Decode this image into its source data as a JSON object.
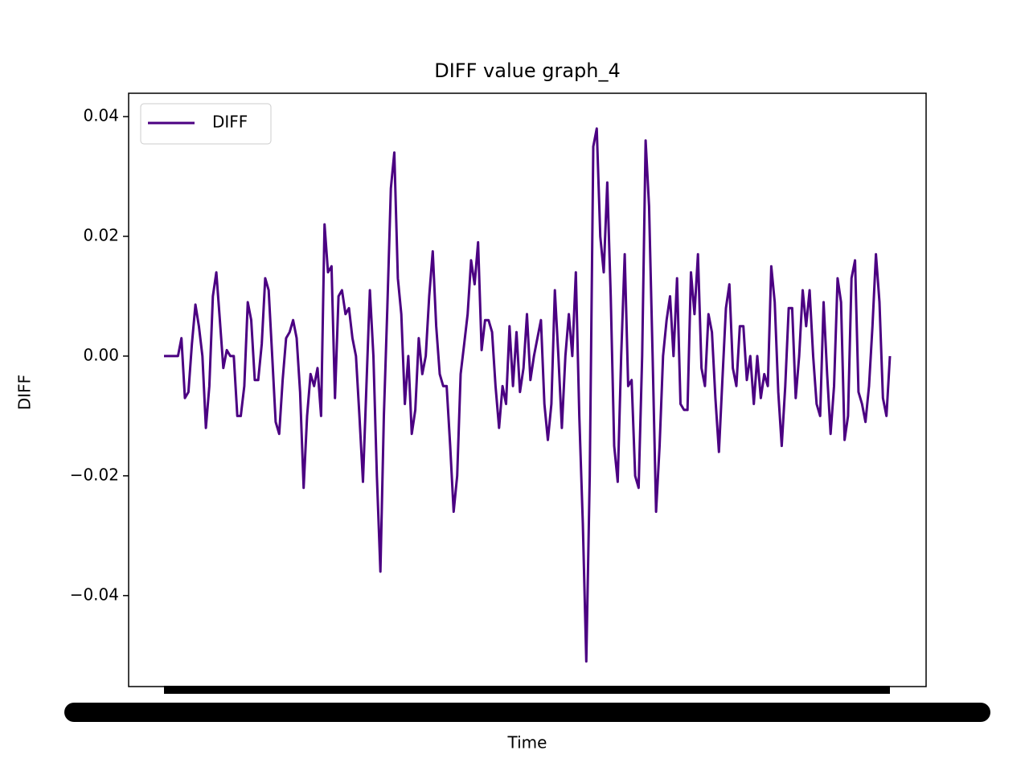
{
  "chart_data": {
    "type": "line",
    "title": "DIFF value graph_4",
    "xlabel": "Time",
    "ylabel": "DIFF",
    "series": [
      {
        "name": "DIFF",
        "color": "#4b0082",
        "values": [
          0,
          0,
          0,
          0,
          0,
          0.003,
          -0.007,
          -0.006,
          0.002,
          0.0086,
          0.005,
          0,
          -0.012,
          -0.005,
          0.01,
          0.014,
          0.006,
          -0.002,
          0.001,
          0,
          0,
          -0.01,
          -0.01,
          -0.005,
          0.009,
          0.006,
          -0.004,
          -0.004,
          0.002,
          0.013,
          0.011,
          0,
          -0.011,
          -0.013,
          -0.004,
          0.003,
          0.004,
          0.006,
          0.003,
          -0.006,
          -0.022,
          -0.01,
          -0.003,
          -0.005,
          -0.002,
          -0.01,
          0.022,
          0.014,
          0.015,
          -0.007,
          0.01,
          0.011,
          0.007,
          0.008,
          0.003,
          0,
          -0.01,
          -0.021,
          -0.005,
          0.011,
          0,
          -0.02,
          -0.036,
          -0.01,
          0.008,
          0.028,
          0.034,
          0.013,
          0.007,
          -0.008,
          0,
          -0.013,
          -0.009,
          0.003,
          -0.003,
          0,
          0.01,
          0.0175,
          0.005,
          -0.003,
          -0.005,
          -0.005,
          -0.015,
          -0.026,
          -0.02,
          -0.003,
          0.002,
          0.007,
          0.016,
          0.012,
          0.019,
          0.001,
          0.006,
          0.006,
          0.004,
          -0.005,
          -0.012,
          -0.005,
          -0.008,
          0.005,
          -0.005,
          0.004,
          -0.006,
          -0.002,
          0.007,
          -0.004,
          0,
          0.003,
          0.006,
          -0.008,
          -0.014,
          -0.008,
          0.011,
          0,
          -0.012,
          0,
          0.007,
          0,
          0.014,
          -0.01,
          -0.028,
          -0.051,
          -0.02,
          0.035,
          0.038,
          0.02,
          0.014,
          0.029,
          0.01,
          -0.015,
          -0.021,
          0,
          0.017,
          -0.005,
          -0.004,
          -0.02,
          -0.022,
          0,
          0.036,
          0.025,
          0,
          -0.026,
          -0.015,
          0,
          0.006,
          0.01,
          0,
          0.013,
          -0.008,
          -0.009,
          -0.009,
          0.014,
          0.007,
          0.017,
          -0.002,
          -0.005,
          0.007,
          0.004,
          -0.007,
          -0.016,
          -0.004,
          0.008,
          0.012,
          -0.002,
          -0.005,
          0.005,
          0.005,
          -0.004,
          0,
          -0.008,
          0,
          -0.007,
          -0.003,
          -0.005,
          0.015,
          0.009,
          -0.006,
          -0.015,
          -0.005,
          0.008,
          0.008,
          -0.007,
          0,
          0.011,
          0.005,
          0.011,
          0,
          -0.008,
          -0.01,
          0.009,
          -0.003,
          -0.013,
          -0.005,
          0.013,
          0.009,
          -0.014,
          -0.01,
          0.013,
          0.016,
          -0.006,
          -0.008,
          -0.011,
          -0.005,
          0.005,
          0.017,
          0.009,
          -0.007,
          -0.01,
          0
        ]
      }
    ],
    "ylim": [
      -0.0552,
      0.0439
    ],
    "yticks": [
      {
        "value": -0.04,
        "label": "−0.04"
      },
      {
        "value": -0.02,
        "label": "−0.02"
      },
      {
        "value": 0,
        "label": "0.00"
      },
      0.02,
      0.04
    ],
    "legend": "upper left"
  }
}
